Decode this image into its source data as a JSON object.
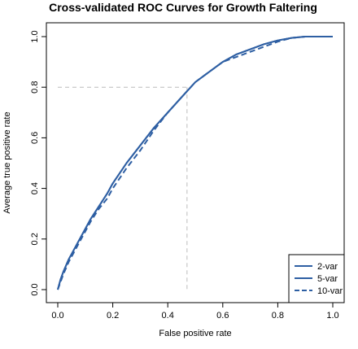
{
  "chart_data": {
    "type": "line",
    "title": "Cross-validated ROC Curves for Growth Faltering",
    "xlabel": "False positive rate",
    "ylabel": "Average true positive rate",
    "xlim": [
      0,
      1
    ],
    "ylim": [
      0,
      1
    ],
    "x_ticks": [
      "0.0",
      "0.2",
      "0.4",
      "0.6",
      "0.8",
      "1.0"
    ],
    "y_ticks": [
      "0.0",
      "0.2",
      "0.4",
      "0.6",
      "0.8",
      "1.0"
    ],
    "grid": false,
    "legend_position": "bottom-right",
    "line_color": "#2e5fa3",
    "reference_color": "#bbbbbb",
    "reference_point": {
      "x": 0.47,
      "y": 0.8
    },
    "series": [
      {
        "name": "2-var",
        "style": "solid",
        "x": [
          0,
          0.01,
          0.02,
          0.04,
          0.06,
          0.08,
          0.1,
          0.12,
          0.15,
          0.18,
          0.2,
          0.25,
          0.3,
          0.35,
          0.4,
          0.45,
          0.5,
          0.55,
          0.6,
          0.65,
          0.7,
          0.75,
          0.8,
          0.85,
          0.9,
          0.95,
          1.0
        ],
        "y": [
          0,
          0.04,
          0.07,
          0.12,
          0.16,
          0.2,
          0.24,
          0.28,
          0.33,
          0.38,
          0.42,
          0.5,
          0.57,
          0.64,
          0.7,
          0.76,
          0.82,
          0.86,
          0.9,
          0.93,
          0.95,
          0.97,
          0.985,
          0.995,
          1.0,
          1.0,
          1.0
        ]
      },
      {
        "name": "5-var",
        "style": "solid",
        "x": [
          0,
          0.01,
          0.02,
          0.04,
          0.06,
          0.08,
          0.1,
          0.12,
          0.15,
          0.18,
          0.2,
          0.25,
          0.3,
          0.35,
          0.4,
          0.45,
          0.5,
          0.55,
          0.6,
          0.65,
          0.7,
          0.75,
          0.8,
          0.85,
          0.9,
          0.95,
          1.0
        ],
        "y": [
          0,
          0.04,
          0.07,
          0.12,
          0.16,
          0.2,
          0.24,
          0.28,
          0.33,
          0.38,
          0.42,
          0.5,
          0.57,
          0.64,
          0.7,
          0.76,
          0.82,
          0.86,
          0.9,
          0.93,
          0.95,
          0.97,
          0.985,
          0.995,
          1.0,
          1.0,
          1.0
        ]
      },
      {
        "name": "10-var",
        "style": "dashed",
        "x": [
          0,
          0.01,
          0.02,
          0.04,
          0.06,
          0.08,
          0.1,
          0.12,
          0.15,
          0.18,
          0.2,
          0.25,
          0.3,
          0.35,
          0.4,
          0.45,
          0.5,
          0.55,
          0.6,
          0.65,
          0.7,
          0.75,
          0.8,
          0.85,
          0.9,
          0.95,
          1.0
        ],
        "y": [
          0,
          0.03,
          0.06,
          0.11,
          0.15,
          0.19,
          0.23,
          0.27,
          0.32,
          0.36,
          0.4,
          0.48,
          0.55,
          0.63,
          0.7,
          0.76,
          0.82,
          0.86,
          0.9,
          0.92,
          0.94,
          0.96,
          0.98,
          0.995,
          1.0,
          1.0,
          1.0
        ]
      }
    ]
  }
}
